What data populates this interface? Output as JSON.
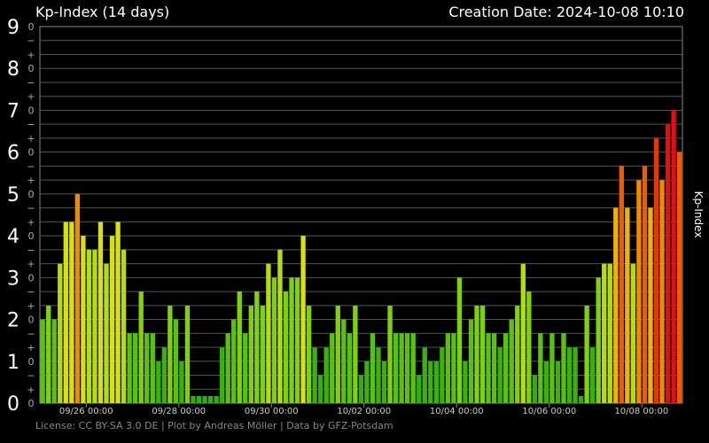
{
  "chart_data": {
    "type": "bar",
    "title": "Kp-Index (14 days)",
    "creation_label": "Creation Date: 2024-10-08 10:10",
    "ylabel": "Kp-Index",
    "footer": "License: CC BY-SA 3.0 DE | Plot by Andreas Möller | Data by GFZ-Potsdam",
    "ylim": [
      0,
      9
    ],
    "y_major_ticks": [
      "0",
      "1",
      "2",
      "3",
      "4",
      "5",
      "6",
      "7",
      "8",
      "9"
    ],
    "y_minor_marks": [
      "−",
      "0",
      "+"
    ],
    "x_tick_labels": [
      "09/26 00:00",
      "09/28 00:00",
      "09/30 00:00",
      "10/02 00:00",
      "10/04 00:00",
      "10/06 00:00",
      "10/08 00:00"
    ],
    "x_tick_bar_index": [
      8,
      24,
      40,
      56,
      72,
      88,
      104
    ],
    "values": [
      2.0,
      2.33,
      2.0,
      3.33,
      4.33,
      4.33,
      5.0,
      4.0,
      3.67,
      3.67,
      4.33,
      3.33,
      4.0,
      4.33,
      3.67,
      1.67,
      1.67,
      2.67,
      1.67,
      1.67,
      1.0,
      1.33,
      2.33,
      2.0,
      1.0,
      2.33,
      0.0,
      0.0,
      0.0,
      0.0,
      0.0,
      1.33,
      1.67,
      2.0,
      2.67,
      1.67,
      2.33,
      2.67,
      2.33,
      3.33,
      3.0,
      3.67,
      2.67,
      3.0,
      3.0,
      4.0,
      2.33,
      1.33,
      0.67,
      1.33,
      1.67,
      2.33,
      2.0,
      1.67,
      2.33,
      0.67,
      1.0,
      1.67,
      1.33,
      1.0,
      2.33,
      1.67,
      1.67,
      1.67,
      1.67,
      0.67,
      1.33,
      1.0,
      1.0,
      1.33,
      1.67,
      1.67,
      3.0,
      1.0,
      2.0,
      2.33,
      2.33,
      1.67,
      1.67,
      1.33,
      1.67,
      2.0,
      2.33,
      3.33,
      2.67,
      0.67,
      1.67,
      1.0,
      1.67,
      1.0,
      1.67,
      1.33,
      1.33,
      0.0,
      2.33,
      1.33,
      3.0,
      3.33,
      3.33,
      4.67,
      5.67,
      4.67,
      3.33,
      5.33,
      5.67,
      4.67,
      6.33,
      5.33,
      6.67,
      7.0,
      6.0
    ]
  }
}
